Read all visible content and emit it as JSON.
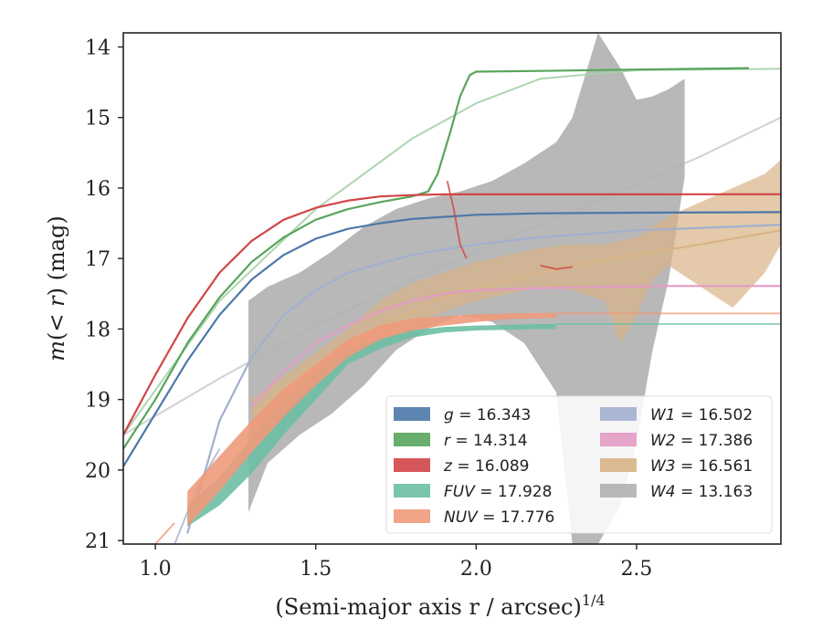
{
  "chart_data": {
    "type": "line",
    "title": "",
    "xlabel": "(Semi-major axis r / arcsec)",
    "xlabel_sup": "1/4",
    "ylabel_parts": [
      "m",
      "(< ",
      "r",
      ") (mag)"
    ],
    "xlim": [
      0.9,
      2.95
    ],
    "ylim": [
      21.05,
      13.8
    ],
    "y_inverted": true,
    "grid": false,
    "legend_position": "lower-right",
    "xticks": [
      1.0,
      1.5,
      2.0,
      2.5
    ],
    "xtick_labels": [
      "1.0",
      "1.5",
      "2.0",
      "2.5"
    ],
    "yticks": [
      14,
      15,
      16,
      17,
      18,
      19,
      20,
      21
    ],
    "ytick_labels": [
      "14",
      "15",
      "16",
      "17",
      "18",
      "19",
      "20",
      "21"
    ],
    "legend_columns": [
      [
        {
          "series": "g",
          "label": "g = 16.343"
        },
        {
          "series": "r",
          "label": "r = 14.314"
        },
        {
          "series": "z",
          "label": "z = 16.089"
        },
        {
          "series": "FUV",
          "label": "FUV = 17.928"
        },
        {
          "series": "NUV",
          "label": "NUV = 17.776"
        }
      ],
      [
        {
          "series": "W1",
          "label": "W1 = 16.502"
        },
        {
          "series": "W2",
          "label": "W2 = 17.386"
        },
        {
          "series": "W3",
          "label": "W3 = 16.561"
        },
        {
          "series": "W4",
          "label": "W4 = 13.163"
        }
      ]
    ],
    "series": [
      {
        "name": "W4",
        "color": "#b0b0b0",
        "fill_opacity": 0.9,
        "band_x": [
          1.29,
          1.35,
          1.45,
          1.55,
          1.65,
          1.75,
          1.85,
          1.95,
          2.05,
          2.15,
          2.25,
          2.3,
          2.38,
          2.45,
          2.5,
          2.55,
          2.6,
          2.65
        ],
        "band_upper": [
          17.6,
          17.4,
          17.2,
          16.9,
          16.55,
          16.3,
          16.15,
          16.05,
          15.9,
          15.65,
          15.35,
          15.0,
          13.8,
          14.3,
          14.75,
          14.7,
          14.6,
          14.45
        ],
        "band_lower": [
          20.6,
          19.9,
          19.5,
          19.2,
          18.8,
          18.3,
          18.0,
          17.8,
          17.9,
          18.2,
          18.9,
          21.05,
          21.05,
          20.5,
          19.6,
          18.3,
          17.3,
          15.85
        ],
        "model_x": [
          0.9,
          1.2,
          1.5,
          1.8,
          2.1,
          2.4,
          2.7,
          2.95
        ],
        "model_y": [
          19.5,
          18.7,
          17.95,
          17.3,
          16.7,
          16.15,
          15.55,
          15.0
        ],
        "model_color": "#cccccc"
      },
      {
        "name": "W3",
        "color": "#d9b486",
        "fill_opacity": 0.7,
        "band_x": [
          1.3,
          1.45,
          1.6,
          1.7,
          1.8,
          1.9,
          2.0,
          2.1,
          2.2,
          2.3,
          2.4,
          2.45,
          2.5,
          2.55,
          2.6,
          2.7,
          2.8,
          2.9,
          2.95
        ],
        "band_upper": [
          19.0,
          18.5,
          18.0,
          17.6,
          17.35,
          17.2,
          17.05,
          16.95,
          16.85,
          16.8,
          16.8,
          16.75,
          16.7,
          16.55,
          16.4,
          16.2,
          16.0,
          15.8,
          15.6
        ],
        "band_lower": [
          19.4,
          18.9,
          18.5,
          18.2,
          17.95,
          17.75,
          17.6,
          17.5,
          17.4,
          17.45,
          17.6,
          18.2,
          17.8,
          17.3,
          17.1,
          17.4,
          17.7,
          17.2,
          16.8
        ],
        "line_x": [
          1.3,
          1.5,
          1.7,
          1.9,
          2.1,
          2.3,
          2.5,
          2.7,
          2.95
        ],
        "line_y": [
          19.2,
          18.5,
          17.95,
          17.55,
          17.3,
          17.1,
          16.95,
          16.8,
          16.6
        ]
      },
      {
        "name": "W2",
        "color": "#e39bc4",
        "fill_opacity": 0.9,
        "line_x": [
          1.3,
          1.4,
          1.5,
          1.6,
          1.7,
          1.8,
          1.9,
          2.0,
          2.2,
          2.4,
          2.6,
          2.8,
          2.95
        ],
        "line_y": [
          19.1,
          18.6,
          18.2,
          17.95,
          17.75,
          17.6,
          17.5,
          17.45,
          17.42,
          17.4,
          17.39,
          17.39,
          17.39
        ]
      },
      {
        "name": "W1",
        "color": "#a3afd0",
        "fill_opacity": 0.9,
        "line_x": [
          1.1,
          1.2,
          1.3,
          1.4,
          1.5,
          1.6,
          1.8,
          2.0,
          2.2,
          2.5,
          2.8,
          2.95
        ],
        "line_y": [
          20.9,
          19.3,
          18.4,
          17.8,
          17.45,
          17.2,
          16.95,
          16.8,
          16.7,
          16.6,
          16.55,
          16.52
        ],
        "extra_lines": [
          {
            "x": [
              1.06,
              1.1,
              1.15,
              1.2
            ],
            "y": [
              21.05,
              20.6,
              20.1,
              19.7
            ]
          }
        ]
      },
      {
        "name": "FUV",
        "color": "#6dbfa5",
        "fill_opacity": 0.9,
        "band_x": [
          1.1,
          1.2,
          1.3,
          1.4,
          1.5,
          1.6,
          1.7,
          1.8,
          1.9,
          2.0,
          2.1,
          2.2,
          2.25
        ],
        "band_upper": [
          20.5,
          20.1,
          19.55,
          19.0,
          18.6,
          18.3,
          18.12,
          18.02,
          17.97,
          17.95,
          17.94,
          17.93,
          17.93
        ],
        "band_lower": [
          20.8,
          20.5,
          20.05,
          19.5,
          19.0,
          18.5,
          18.28,
          18.12,
          18.05,
          18.02,
          18.01,
          18.0,
          18.0
        ],
        "tail_x": [
          2.25,
          2.95
        ],
        "tail_y": [
          17.93,
          17.93
        ]
      },
      {
        "name": "NUV",
        "color": "#ee9a7b",
        "fill_opacity": 0.9,
        "band_x": [
          1.1,
          1.2,
          1.3,
          1.4,
          1.5,
          1.6,
          1.7,
          1.8,
          1.9,
          2.0,
          2.1,
          2.25
        ],
        "band_upper": [
          20.3,
          19.8,
          19.3,
          18.85,
          18.5,
          18.15,
          17.95,
          17.85,
          17.82,
          17.79,
          17.78,
          17.77
        ],
        "band_lower": [
          20.8,
          20.3,
          19.75,
          19.25,
          18.8,
          18.4,
          18.15,
          18.02,
          17.95,
          17.9,
          17.86,
          17.84
        ],
        "tail_x": [
          2.25,
          2.95
        ],
        "tail_y": [
          17.78,
          17.78
        ],
        "extra_lines": [
          {
            "x": [
              1.0,
              1.03,
              1.06
            ],
            "y": [
              21.05,
              20.9,
              20.75
            ]
          }
        ]
      },
      {
        "name": "g",
        "color": "#4c78a8",
        "fill_opacity": 0.9,
        "line_x": [
          0.9,
          1.0,
          1.1,
          1.2,
          1.3,
          1.4,
          1.5,
          1.6,
          1.7,
          1.8,
          2.0,
          2.2,
          2.5,
          2.8,
          2.95
        ],
        "line_y": [
          19.95,
          19.2,
          18.45,
          17.8,
          17.3,
          16.95,
          16.72,
          16.58,
          16.5,
          16.44,
          16.38,
          16.36,
          16.35,
          16.345,
          16.343
        ]
      },
      {
        "name": "r",
        "color": "#58a55c",
        "fill_opacity": 0.9,
        "line_x": [
          0.9,
          1.0,
          1.1,
          1.2,
          1.3,
          1.4,
          1.5,
          1.6,
          1.7,
          1.8,
          1.85,
          1.88,
          1.92,
          1.95,
          1.98,
          2.0,
          2.2,
          2.5,
          2.85
        ],
        "line_y": [
          19.7,
          19.0,
          18.2,
          17.55,
          17.05,
          16.7,
          16.45,
          16.3,
          16.2,
          16.12,
          16.05,
          15.8,
          15.2,
          14.7,
          14.4,
          14.35,
          14.34,
          14.32,
          14.3
        ],
        "model_x": [
          0.9,
          1.2,
          1.5,
          1.8,
          2.0,
          2.2,
          2.5,
          2.95
        ],
        "model_y": [
          19.5,
          17.6,
          16.3,
          15.3,
          14.8,
          14.45,
          14.33,
          14.31
        ],
        "model_color": "#a6d0a8"
      },
      {
        "name": "z",
        "color": "#d24547",
        "fill_opacity": 0.9,
        "line_x": [
          0.9,
          1.0,
          1.1,
          1.2,
          1.3,
          1.4,
          1.5,
          1.6,
          1.7,
          1.8,
          1.9,
          2.1,
          2.4,
          2.7,
          2.95
        ],
        "line_y": [
          19.5,
          18.65,
          17.85,
          17.2,
          16.75,
          16.45,
          16.28,
          16.18,
          16.12,
          16.1,
          16.09,
          16.09,
          16.09,
          16.089,
          16.089
        ],
        "extra_lines": [
          {
            "x": [
              1.91,
              1.93,
              1.95,
              1.97
            ],
            "y": [
              15.9,
              16.3,
              16.8,
              17.0
            ]
          },
          {
            "x": [
              2.2,
              2.25,
              2.3
            ],
            "y": [
              17.1,
              17.15,
              17.12
            ]
          }
        ]
      }
    ]
  }
}
